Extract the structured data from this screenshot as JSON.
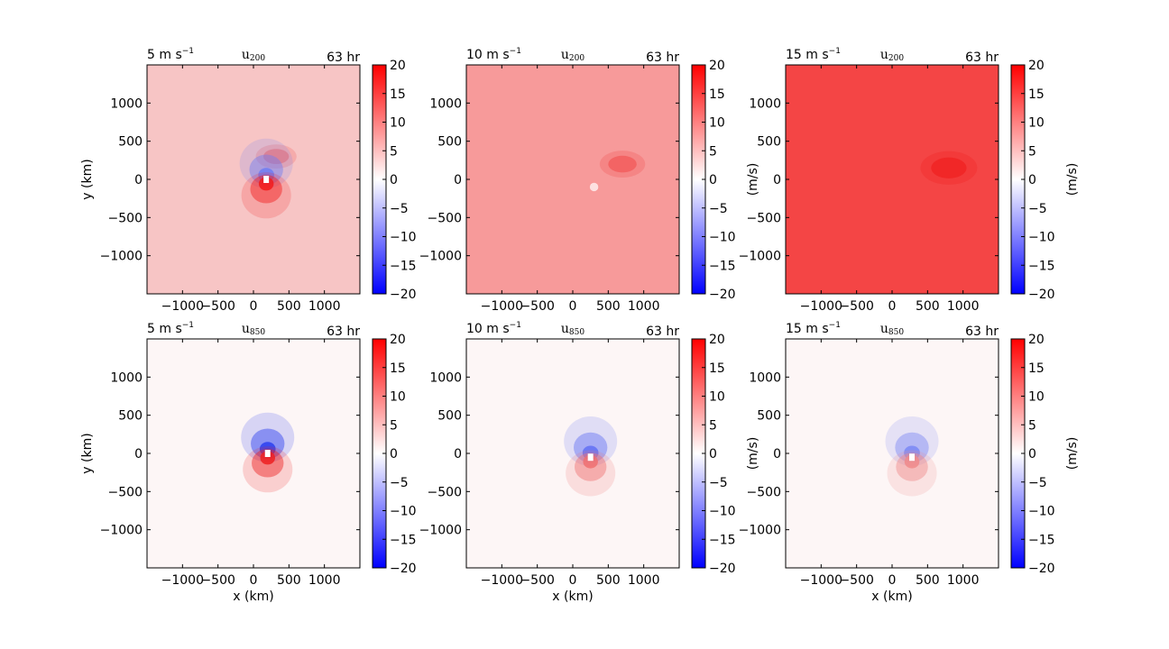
{
  "chart_data": [
    {
      "type": "heatmap",
      "row": 0,
      "col": 0,
      "title_left": "5 m s",
      "title_left_sup": "−1",
      "title_center": "u",
      "title_center_sub": "200",
      "title_right": "63 hr",
      "xlabel": "",
      "ylabel": "y (km)",
      "cbar_label": "",
      "background": "#f7c5c5",
      "features": [
        {
          "kind": "arc",
          "cx": 320,
          "cy": 300,
          "r": 180,
          "color": "#f17b7b"
        },
        {
          "kind": "dipole",
          "cx": 180,
          "cy": 0,
          "neg": "#6e7df2",
          "pos": "#f21b1b"
        }
      ]
    },
    {
      "type": "heatmap",
      "row": 0,
      "col": 1,
      "title_left": "10 m s",
      "title_left_sup": "−1",
      "title_center": "u",
      "title_center_sub": "200",
      "title_right": "63 hr",
      "xlabel": "",
      "ylabel": "",
      "cbar_label": "(m/s)",
      "background": "#f79a9a",
      "features": [
        {
          "kind": "arc",
          "cx": 700,
          "cy": 200,
          "r": 200,
          "color": "#f25e5e"
        },
        {
          "kind": "dot",
          "cx": 300,
          "cy": -100,
          "color": "#ffffff"
        }
      ]
    },
    {
      "type": "heatmap",
      "row": 0,
      "col": 2,
      "title_left": "15 m s",
      "title_left_sup": "−1",
      "title_center": "u",
      "title_center_sub": "200",
      "title_right": "63 hr",
      "xlabel": "",
      "ylabel": "",
      "cbar_label": "(m/s)",
      "background": "#f44545",
      "features": [
        {
          "kind": "arc",
          "cx": 800,
          "cy": 150,
          "r": 250,
          "color": "#f02424"
        }
      ]
    },
    {
      "type": "heatmap",
      "row": 1,
      "col": 0,
      "title_left": "5 m s",
      "title_left_sup": "−1",
      "title_center": "u",
      "title_center_sub": "850",
      "title_right": "63 hr",
      "xlabel": "x (km)",
      "ylabel": "y (km)",
      "cbar_label": "",
      "background": "#fdf6f6",
      "features": [
        {
          "kind": "dipole",
          "cx": 200,
          "cy": 0,
          "neg": "#2b3ff0",
          "pos": "#ee2020"
        }
      ]
    },
    {
      "type": "heatmap",
      "row": 1,
      "col": 1,
      "title_left": "10 m s",
      "title_left_sup": "−1",
      "title_center": "u",
      "title_center_sub": "850",
      "title_right": "63 hr",
      "xlabel": "x (km)",
      "ylabel": "",
      "cbar_label": "(m/s)",
      "background": "#fdf6f6",
      "features": [
        {
          "kind": "dipole",
          "cx": 250,
          "cy": -50,
          "neg": "#6170f3",
          "pos": "#f07070"
        }
      ]
    },
    {
      "type": "heatmap",
      "row": 1,
      "col": 2,
      "title_left": "15 m s",
      "title_left_sup": "−1",
      "title_center": "u",
      "title_center_sub": "850",
      "title_right": "63 hr",
      "xlabel": "x (km)",
      "ylabel": "",
      "cbar_label": "(m/s)",
      "background": "#fdf6f6",
      "features": [
        {
          "kind": "dipole",
          "cx": 280,
          "cy": -50,
          "neg": "#7a87f4",
          "pos": "#f08a8a"
        }
      ]
    }
  ],
  "axes": {
    "xlim": [
      -1500,
      1500
    ],
    "ylim": [
      -1500,
      1500
    ],
    "xticks": [
      -1000,
      -500,
      0,
      500,
      1000
    ],
    "xtick_labels": [
      "−1000",
      "−500",
      "0",
      "500",
      "1000"
    ],
    "yticks": [
      1000,
      500,
      0,
      -500,
      -1000
    ],
    "ytick_labels": [
      "1000",
      "500",
      "0",
      "−500",
      "−1000"
    ]
  },
  "colorbar": {
    "range": [
      -20,
      20
    ],
    "ticks": [
      20,
      15,
      10,
      5,
      0,
      -5,
      -10,
      -15,
      -20
    ],
    "tick_labels": [
      "20",
      "15",
      "10",
      "5",
      "0",
      "−5",
      "−10",
      "−15",
      "−20"
    ],
    "cmap": "bwr"
  }
}
